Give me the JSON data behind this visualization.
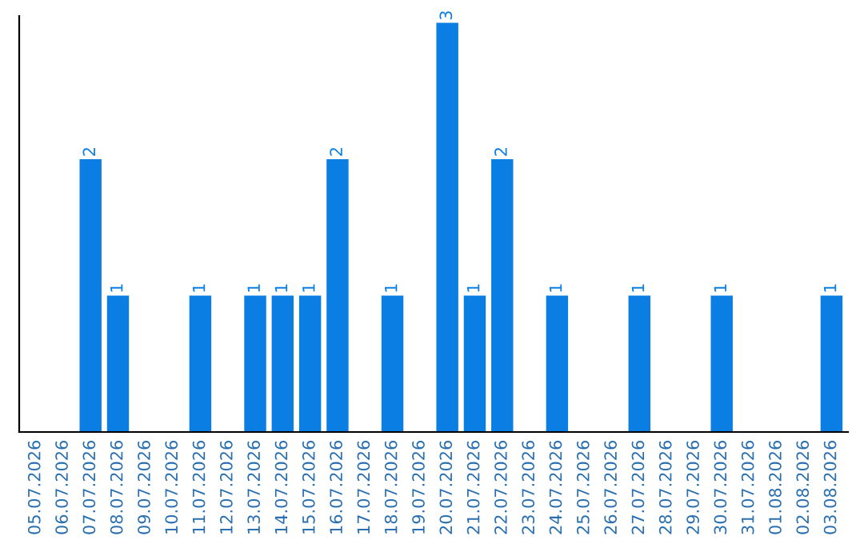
{
  "chart_data": {
    "type": "bar",
    "categories": [
      "05.07.2026",
      "06.07.2026",
      "07.07.2026",
      "08.07.2026",
      "09.07.2026",
      "10.07.2026",
      "11.07.2026",
      "12.07.2026",
      "13.07.2026",
      "14.07.2026",
      "15.07.2026",
      "16.07.2026",
      "17.07.2026",
      "18.07.2026",
      "19.07.2026",
      "20.07.2026",
      "21.07.2026",
      "22.07.2026",
      "23.07.2026",
      "24.07.2026",
      "25.07.2026",
      "26.07.2026",
      "27.07.2026",
      "28.07.2026",
      "29.07.2026",
      "30.07.2026",
      "31.07.2026",
      "01.08.2026",
      "02.08.2026",
      "03.08.2026"
    ],
    "values": [
      0,
      0,
      2,
      1,
      0,
      0,
      1,
      0,
      1,
      1,
      1,
      2,
      0,
      1,
      0,
      3,
      1,
      2,
      0,
      1,
      0,
      0,
      1,
      0,
      0,
      1,
      0,
      0,
      0,
      1
    ],
    "value_labels": [
      null,
      null,
      "2",
      "1",
      null,
      null,
      "1",
      null,
      "1",
      "1",
      "1",
      "2",
      null,
      "1",
      null,
      "3",
      "1",
      "2",
      null,
      "1",
      null,
      null,
      "1",
      null,
      null,
      "1",
      null,
      null,
      null,
      "1"
    ],
    "color": "#0a7ee3",
    "ylim": [
      0,
      3.05
    ],
    "tick_labels": "x",
    "grid": false,
    "legend": false
  }
}
